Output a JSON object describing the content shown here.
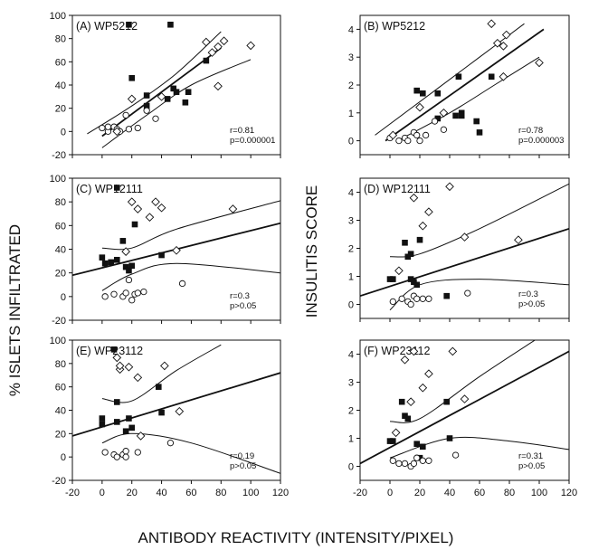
{
  "figure": {
    "ylabel_left": "% ISLETS INFILTRATED",
    "ylabel_right": "INSULITIS SCORE",
    "xlabel": "ANTIBODY REACTIVITY (INTENSITY/PIXEL)"
  },
  "chart_data": [
    {
      "type": "scatter",
      "title": "(A) WP5212",
      "xlim": [
        -20,
        120
      ],
      "ylim": [
        -20,
        100
      ],
      "xticks": [],
      "yticks": [
        -20,
        0,
        20,
        40,
        60,
        80,
        100
      ],
      "stats": [
        "r=0.81",
        "p=0.000001"
      ],
      "series": [
        {
          "marker": "square",
          "points": [
            [
              18,
              92
            ],
            [
              20,
              46
            ],
            [
              30,
              31
            ],
            [
              30,
              22
            ],
            [
              44,
              28
            ],
            [
              48,
              37
            ],
            [
              50,
              34
            ],
            [
              56,
              25
            ],
            [
              58,
              34
            ],
            [
              70,
              61
            ],
            [
              46,
              92
            ]
          ]
        },
        {
          "marker": "circle",
          "points": [
            [
              0,
              3
            ],
            [
              4,
              0
            ],
            [
              8,
              4
            ],
            [
              10,
              2
            ],
            [
              12,
              0
            ],
            [
              16,
              14
            ],
            [
              18,
              2
            ],
            [
              24,
              3
            ],
            [
              30,
              18
            ],
            [
              36,
              11
            ],
            [
              4,
              4
            ]
          ]
        },
        {
          "marker": "diamond",
          "points": [
            [
              10,
              0
            ],
            [
              20,
              28
            ],
            [
              40,
              30
            ],
            [
              70,
              77
            ],
            [
              74,
              68
            ],
            [
              78,
              73
            ],
            [
              82,
              78
            ],
            [
              78,
              39
            ],
            [
              100,
              74
            ]
          ]
        }
      ],
      "regression": [
        [
          0,
          -4
        ],
        [
          80,
          72
        ]
      ],
      "ci": {
        "upper": [
          [
            -10,
            -2
          ],
          [
            20,
            22
          ],
          [
            50,
            50
          ],
          [
            80,
            86
          ]
        ],
        "lower": [
          [
            0,
            -14
          ],
          [
            30,
            14
          ],
          [
            60,
            40
          ],
          [
            100,
            62
          ]
        ]
      }
    },
    {
      "type": "scatter",
      "title": "(B) WP5212",
      "xlim": [
        -20,
        120
      ],
      "ylim": [
        -0.5,
        4.5
      ],
      "xticks": [],
      "yticks": [
        0,
        1,
        2,
        3,
        4
      ],
      "stats": [
        "r=0.78",
        "p=0.000003"
      ],
      "series": [
        {
          "marker": "square",
          "points": [
            [
              18,
              1.8
            ],
            [
              22,
              1.7
            ],
            [
              32,
              1.7
            ],
            [
              32,
              0.8
            ],
            [
              44,
              0.9
            ],
            [
              48,
              1.0
            ],
            [
              46,
              2.3
            ],
            [
              48,
              0.9
            ],
            [
              58,
              0.7
            ],
            [
              60,
              0.3
            ],
            [
              68,
              2.3
            ]
          ]
        },
        {
          "marker": "circle",
          "points": [
            [
              0,
              0.1
            ],
            [
              6,
              0.0
            ],
            [
              10,
              0.1
            ],
            [
              12,
              0.0
            ],
            [
              16,
              0.3
            ],
            [
              18,
              0.2
            ],
            [
              20,
              0.0
            ],
            [
              24,
              0.2
            ],
            [
              30,
              0.7
            ],
            [
              36,
              0.4
            ]
          ]
        },
        {
          "marker": "diamond",
          "points": [
            [
              2,
              0.2
            ],
            [
              20,
              1.2
            ],
            [
              36,
              1.0
            ],
            [
              68,
              4.2
            ],
            [
              72,
              3.5
            ],
            [
              76,
              3.4
            ],
            [
              78,
              3.8
            ],
            [
              76,
              2.3
            ],
            [
              100,
              2.8
            ]
          ]
        }
      ],
      "regression": [
        [
          -3,
          0
        ],
        [
          103,
          4.0
        ]
      ],
      "ci": {
        "upper": [
          [
            -10,
            0.2
          ],
          [
            30,
            1.8
          ],
          [
            60,
            3.0
          ],
          [
            90,
            4.2
          ]
        ],
        "lower": [
          [
            5,
            0
          ],
          [
            40,
            1.0
          ],
          [
            70,
            2.0
          ],
          [
            100,
            3.0
          ]
        ]
      }
    },
    {
      "type": "scatter",
      "title": "(C) WP12111",
      "xlim": [
        -20,
        120
      ],
      "ylim": [
        -20,
        100
      ],
      "xticks": [],
      "yticks": [
        -20,
        0,
        20,
        40,
        60,
        80,
        100
      ],
      "stats": [
        "r=0.3",
        "p>0.05"
      ],
      "series": [
        {
          "marker": "square",
          "points": [
            [
              0,
              33
            ],
            [
              2,
              28
            ],
            [
              6,
              29
            ],
            [
              10,
              92
            ],
            [
              10,
              31
            ],
            [
              14,
              47
            ],
            [
              16,
              25
            ],
            [
              18,
              22
            ],
            [
              20,
              26
            ],
            [
              22,
              61
            ],
            [
              40,
              35
            ]
          ]
        },
        {
          "marker": "circle",
          "points": [
            [
              2,
              0
            ],
            [
              8,
              2
            ],
            [
              14,
              0
            ],
            [
              16,
              3
            ],
            [
              18,
              14
            ],
            [
              20,
              -3
            ],
            [
              22,
              2
            ],
            [
              24,
              3
            ],
            [
              28,
              4
            ],
            [
              54,
              11
            ]
          ]
        },
        {
          "marker": "diamond",
          "points": [
            [
              16,
              38
            ],
            [
              20,
              80
            ],
            [
              24,
              74
            ],
            [
              32,
              67
            ],
            [
              36,
              80
            ],
            [
              40,
              75
            ],
            [
              50,
              39
            ],
            [
              88,
              74
            ]
          ]
        }
      ],
      "regression": [
        [
          -20,
          18
        ],
        [
          120,
          62
        ]
      ],
      "ci": {
        "upper": [
          [
            0,
            41
          ],
          [
            20,
            41
          ],
          [
            50,
            57
          ],
          [
            120,
            81
          ]
        ],
        "lower": [
          [
            0,
            5
          ],
          [
            20,
            19
          ],
          [
            50,
            28
          ],
          [
            120,
            20
          ]
        ]
      }
    },
    {
      "type": "scatter",
      "title": "(D) WP12111",
      "xlim": [
        -20,
        120
      ],
      "ylim": [
        -0.5,
        4.5
      ],
      "xticks": [],
      "yticks": [
        0,
        1,
        2,
        3,
        4
      ],
      "stats": [
        "r=0.3",
        "p>0.05"
      ],
      "series": [
        {
          "marker": "square",
          "points": [
            [
              0,
              0.9
            ],
            [
              2,
              0.9
            ],
            [
              10,
              2.2
            ],
            [
              12,
              1.7
            ],
            [
              14,
              1.8
            ],
            [
              14,
              0.9
            ],
            [
              16,
              0.8
            ],
            [
              18,
              0.7
            ],
            [
              20,
              2.3
            ],
            [
              38,
              0.3
            ]
          ]
        },
        {
          "marker": "circle",
          "points": [
            [
              2,
              0.1
            ],
            [
              8,
              0.2
            ],
            [
              12,
              0.1
            ],
            [
              14,
              0.0
            ],
            [
              16,
              0.3
            ],
            [
              18,
              0.2
            ],
            [
              22,
              0.2
            ],
            [
              26,
              0.2
            ],
            [
              52,
              0.4
            ]
          ]
        },
        {
          "marker": "diamond",
          "points": [
            [
              6,
              1.2
            ],
            [
              16,
              3.8
            ],
            [
              22,
              2.8
            ],
            [
              26,
              3.3
            ],
            [
              40,
              4.2
            ],
            [
              50,
              2.4
            ],
            [
              86,
              2.3
            ]
          ]
        }
      ],
      "regression": [
        [
          -20,
          0.3
        ],
        [
          120,
          2.7
        ]
      ],
      "ci": {
        "upper": [
          [
            0,
            1.7
          ],
          [
            20,
            1.8
          ],
          [
            60,
            2.7
          ],
          [
            120,
            4.3
          ]
        ],
        "lower": [
          [
            0,
            -0.2
          ],
          [
            20,
            0.7
          ],
          [
            60,
            0.9
          ],
          [
            120,
            0.7
          ]
        ]
      }
    },
    {
      "type": "scatter",
      "title": "(E) WP23112",
      "xlim": [
        -20,
        120
      ],
      "ylim": [
        -20,
        100
      ],
      "xticks": [
        -20,
        0,
        20,
        40,
        60,
        80,
        100,
        120
      ],
      "yticks": [
        -20,
        0,
        20,
        40,
        60,
        80,
        100
      ],
      "stats": [
        "r=0.19",
        "p>0.05"
      ],
      "series": [
        {
          "marker": "square",
          "points": [
            [
              0,
              33
            ],
            [
              0,
              28
            ],
            [
              8,
              92
            ],
            [
              10,
              47
            ],
            [
              10,
              30
            ],
            [
              16,
              22
            ],
            [
              18,
              33
            ],
            [
              20,
              25
            ],
            [
              38,
              60
            ],
            [
              40,
              38
            ]
          ]
        },
        {
          "marker": "circle",
          "points": [
            [
              2,
              4
            ],
            [
              8,
              2
            ],
            [
              10,
              0
            ],
            [
              14,
              2
            ],
            [
              16,
              0
            ],
            [
              16,
              5
            ],
            [
              24,
              4
            ],
            [
              46,
              12
            ]
          ]
        },
        {
          "marker": "diamond",
          "points": [
            [
              10,
              85
            ],
            [
              12,
              75
            ],
            [
              12,
              78
            ],
            [
              18,
              77
            ],
            [
              24,
              68
            ],
            [
              26,
              18
            ],
            [
              42,
              78
            ],
            [
              52,
              39
            ]
          ]
        }
      ],
      "regression": [
        [
          -20,
          18
        ],
        [
          120,
          72
        ]
      ],
      "ci": {
        "upper": [
          [
            0,
            50
          ],
          [
            20,
            48
          ],
          [
            50,
            74
          ],
          [
            80,
            96
          ]
        ],
        "lower": [
          [
            0,
            12
          ],
          [
            20,
            20
          ],
          [
            60,
            12
          ],
          [
            120,
            -14
          ]
        ]
      }
    },
    {
      "type": "scatter",
      "title": "(F) WP23112",
      "xlim": [
        -20,
        120
      ],
      "ylim": [
        -0.5,
        4.5
      ],
      "xticks": [
        -20,
        0,
        20,
        40,
        60,
        80,
        100,
        120
      ],
      "yticks": [
        0,
        1,
        2,
        3,
        4
      ],
      "stats": [
        "r=0.31",
        "p>0.05"
      ],
      "series": [
        {
          "marker": "square",
          "points": [
            [
              0,
              0.9
            ],
            [
              2,
              0.9
            ],
            [
              8,
              2.3
            ],
            [
              10,
              1.8
            ],
            [
              12,
              1.7
            ],
            [
              18,
              0.8
            ],
            [
              20,
              0.3
            ],
            [
              22,
              0.7
            ],
            [
              38,
              2.3
            ],
            [
              40,
              1.0
            ]
          ]
        },
        {
          "marker": "circle",
          "points": [
            [
              2,
              0.2
            ],
            [
              6,
              0.1
            ],
            [
              10,
              0.1
            ],
            [
              14,
              0.0
            ],
            [
              16,
              0.1
            ],
            [
              18,
              0.3
            ],
            [
              22,
              0.2
            ],
            [
              26,
              0.2
            ],
            [
              44,
              0.4
            ]
          ]
        },
        {
          "marker": "diamond",
          "points": [
            [
              4,
              1.2
            ],
            [
              10,
              3.8
            ],
            [
              14,
              2.3
            ],
            [
              16,
              4.1
            ],
            [
              22,
              2.8
            ],
            [
              26,
              3.3
            ],
            [
              42,
              4.1
            ],
            [
              50,
              2.4
            ]
          ]
        }
      ],
      "regression": [
        [
          -20,
          0.1
        ],
        [
          120,
          4.1
        ]
      ],
      "ci": {
        "upper": [
          [
            0,
            1.6
          ],
          [
            20,
            1.7
          ],
          [
            60,
            3.2
          ],
          [
            100,
            4.6
          ]
        ],
        "lower": [
          [
            0,
            0.3
          ],
          [
            40,
            1.0
          ],
          [
            80,
            0.9
          ],
          [
            120,
            0.6
          ]
        ]
      }
    }
  ]
}
